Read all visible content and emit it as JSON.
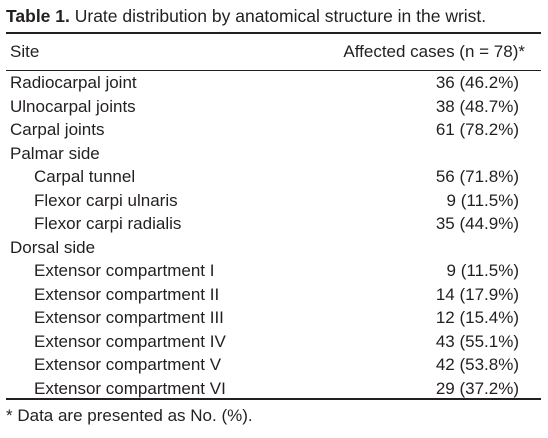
{
  "caption": {
    "label": "Table 1.",
    "text": " Urate distribution by anatomical structure in the wrist."
  },
  "header": {
    "site": "Site",
    "cases": "Affected cases (n = 78)*"
  },
  "rows": [
    {
      "site": "Radiocarpal joint",
      "value": "36 (46.2%)",
      "indent": false
    },
    {
      "site": "Ulnocarpal joints",
      "value": "38 (48.7%)",
      "indent": false
    },
    {
      "site": "Carpal joints",
      "value": "61 (78.2%)",
      "indent": false
    },
    {
      "site": "Palmar side",
      "value": "",
      "indent": false
    },
    {
      "site": "Carpal tunnel",
      "value": "56 (71.8%)",
      "indent": true
    },
    {
      "site": "Flexor carpi ulnaris",
      "value": "9 (11.5%)",
      "indent": true
    },
    {
      "site": "Flexor carpi radialis",
      "value": "35 (44.9%)",
      "indent": true
    },
    {
      "site": "Dorsal side",
      "value": "",
      "indent": false
    },
    {
      "site": "Extensor compartment I",
      "value": "9 (11.5%)",
      "indent": true
    },
    {
      "site": "Extensor compartment II",
      "value": "14 (17.9%)",
      "indent": true
    },
    {
      "site": "Extensor compartment III",
      "value": "12 (15.4%)",
      "indent": true
    },
    {
      "site": "Extensor compartment IV",
      "value": "43 (55.1%)",
      "indent": true
    },
    {
      "site": "Extensor compartment V",
      "value": "42 (53.8%)",
      "indent": true
    },
    {
      "site": "Extensor compartment VI",
      "value": "29 (37.2%)",
      "indent": true
    }
  ],
  "footnote": "* Data are presented as No. (%)."
}
